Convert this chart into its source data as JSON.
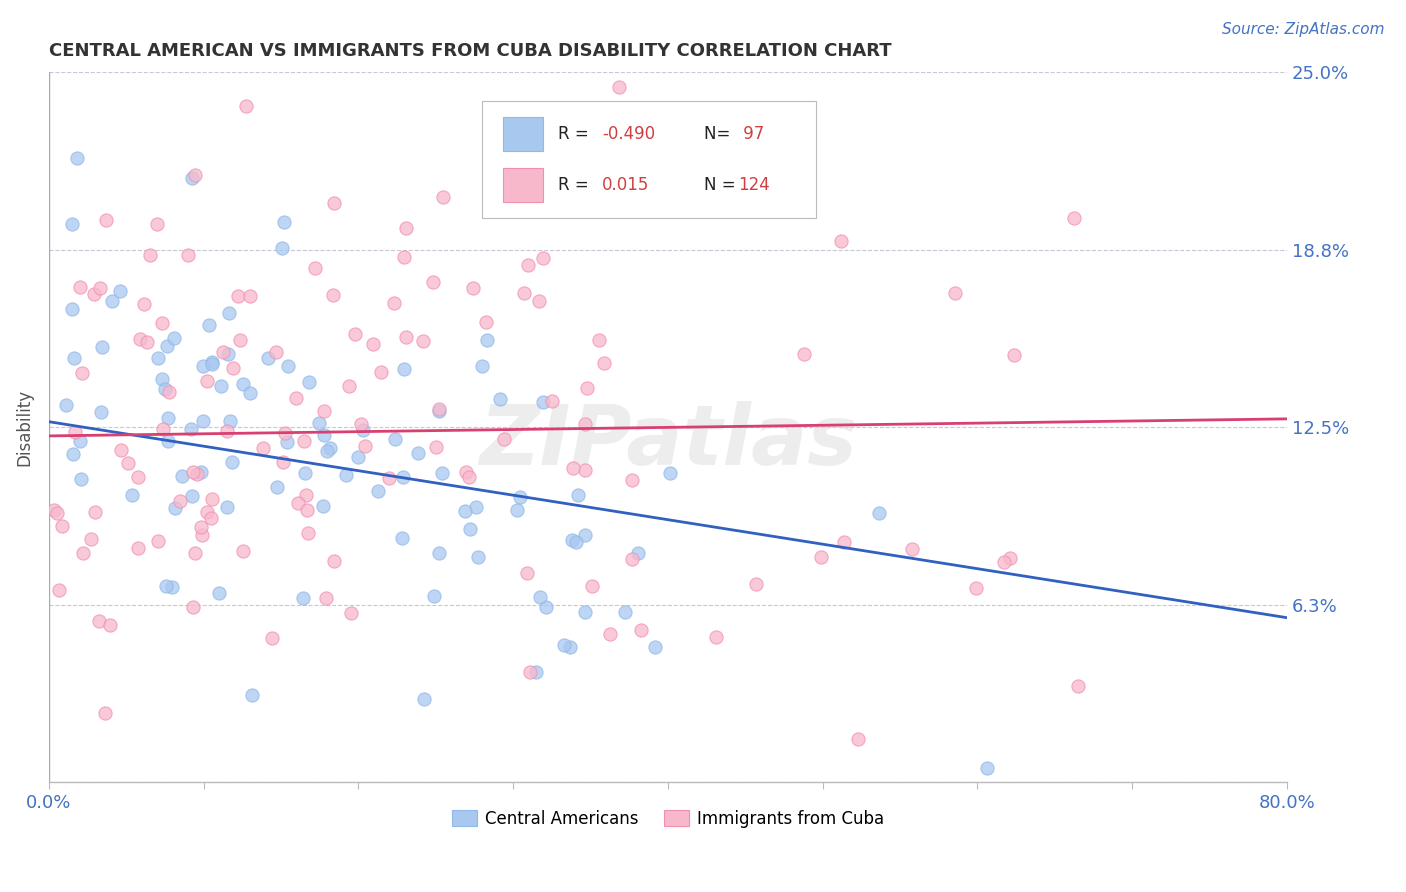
{
  "title": "CENTRAL AMERICAN VS IMMIGRANTS FROM CUBA DISABILITY CORRELATION CHART",
  "source": "Source: ZipAtlas.com",
  "ylabel": "Disability",
  "xlim": [
    0,
    0.8
  ],
  "ylim": [
    0,
    0.25
  ],
  "yticks": [
    0.0,
    0.0625,
    0.125,
    0.1875,
    0.25
  ],
  "ytick_labels": [
    "",
    "6.3%",
    "12.5%",
    "18.8%",
    "25.0%"
  ],
  "blue_R": -0.49,
  "blue_N": 97,
  "pink_R": 0.015,
  "pink_N": 124,
  "blue_color": "#a8c8f0",
  "pink_color": "#f8b8cc",
  "blue_edge_color": "#90b8e8",
  "pink_edge_color": "#f090b0",
  "blue_line_color": "#3060c0",
  "pink_line_color": "#d84070",
  "watermark": "ZIPatlas",
  "blue_trend_start_y": 0.127,
  "blue_trend_end_y": 0.058,
  "pink_trend_start_y": 0.122,
  "pink_trend_end_y": 0.128,
  "seed": 7
}
